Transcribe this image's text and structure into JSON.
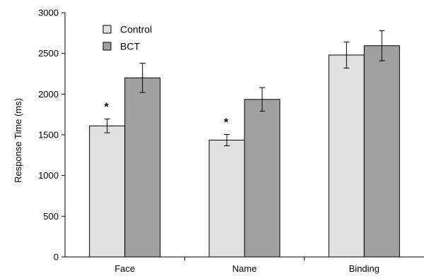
{
  "chart_data": {
    "type": "bar",
    "title": "",
    "xlabel": "",
    "ylabel": "Response Time (ms)",
    "ylim": [
      0,
      3000
    ],
    "yticks": [
      0,
      500,
      1000,
      1500,
      2000,
      2500,
      3000
    ],
    "grid": false,
    "legend_position": "top-left",
    "categories": [
      "Face",
      "Name",
      "Binding"
    ],
    "series": [
      {
        "name": "Control",
        "color": "#e0e0e0",
        "values": [
          1610,
          1435,
          2480
        ],
        "errors": [
          85,
          70,
          160
        ]
      },
      {
        "name": "BCT",
        "color": "#a0a0a0",
        "values": [
          2200,
          1935,
          2595
        ],
        "errors": [
          180,
          145,
          185
        ]
      }
    ],
    "annotations": [
      {
        "text": "*",
        "category": "Face",
        "series": "Control"
      },
      {
        "text": "*",
        "category": "Name",
        "series": "Control"
      }
    ]
  }
}
